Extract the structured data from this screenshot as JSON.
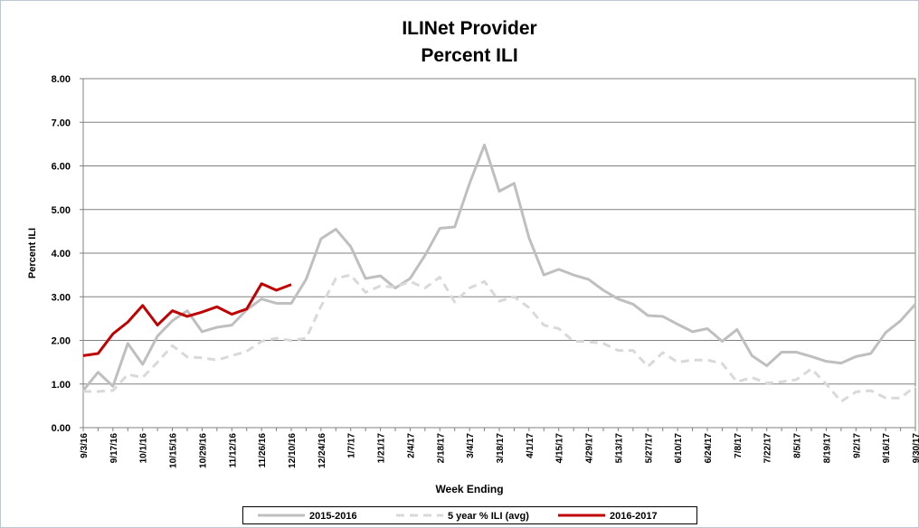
{
  "chart_data": {
    "type": "line",
    "title": "ILINet Provider",
    "subtitle": "Percent ILI",
    "x_label": "Week Ending",
    "y_label": "Percent ILI",
    "categories": [
      "9/3/16",
      null,
      "9/17/16",
      null,
      "10/1/16",
      null,
      "10/15/16",
      null,
      "10/29/16",
      null,
      "11/12/16",
      null,
      "11/26/16",
      null,
      "12/10/16",
      null,
      "12/24/16",
      null,
      "1/7/17",
      null,
      "1/21/17",
      null,
      "2/4/17",
      null,
      "2/18/17",
      null,
      "3/4/17",
      null,
      "3/18/17",
      null,
      "4/1/17",
      null,
      "4/15/17",
      null,
      "4/29/17",
      null,
      "5/13/17",
      null,
      "5/27/17",
      null,
      "6/10/17",
      null,
      "6/24/17",
      null,
      "7/8/17",
      null,
      "7/22/17",
      null,
      "8/5/17",
      null,
      "8/19/17",
      null,
      "9/2/17",
      null,
      "9/16/17",
      null,
      "9/30/17"
    ],
    "series": [
      {
        "name": "2015-2016",
        "color": "#bfbfbf",
        "dashed": false,
        "values": [
          0.85,
          1.27,
          0.95,
          1.93,
          1.45,
          2.1,
          2.45,
          2.68,
          2.2,
          2.3,
          2.35,
          2.7,
          2.95,
          2.85,
          2.85,
          3.4,
          4.33,
          4.55,
          4.15,
          3.42,
          3.48,
          3.2,
          3.42,
          3.95,
          4.57,
          4.6,
          5.6,
          6.48,
          5.42,
          5.6,
          4.35,
          3.5,
          3.63,
          3.5,
          3.4,
          3.15,
          2.95,
          2.83,
          2.57,
          2.55,
          2.37,
          2.2,
          2.27,
          1.98,
          2.25,
          1.65,
          1.42,
          1.73,
          1.73,
          1.63,
          1.52,
          1.48,
          1.63,
          1.7,
          2.18,
          2.45,
          2.83
        ]
      },
      {
        "name": "5 year % ILI (avg)",
        "color": "#d9d9d9",
        "dashed": true,
        "values": [
          0.83,
          0.83,
          0.85,
          1.22,
          1.15,
          1.5,
          1.88,
          1.62,
          1.6,
          1.55,
          1.65,
          1.75,
          1.98,
          2.05,
          2.0,
          2.05,
          2.78,
          3.42,
          3.5,
          3.1,
          3.25,
          3.22,
          3.35,
          3.2,
          3.45,
          2.88,
          3.2,
          3.35,
          2.9,
          3.0,
          2.75,
          2.35,
          2.27,
          1.98,
          1.97,
          1.93,
          1.77,
          1.77,
          1.4,
          1.72,
          1.5,
          1.55,
          1.55,
          1.47,
          1.05,
          1.15,
          1.02,
          1.05,
          1.1,
          1.35,
          1.0,
          0.6,
          0.82,
          0.85,
          0.68,
          0.68,
          0.95
        ]
      },
      {
        "name": "2016-2017",
        "color": "#c00000",
        "dashed": false,
        "values": [
          1.65,
          1.7,
          2.15,
          2.42,
          2.8,
          2.35,
          2.68,
          2.55,
          2.65,
          2.77,
          2.6,
          2.72,
          3.3,
          3.15,
          3.28,
          null,
          null,
          null,
          null,
          null,
          null,
          null,
          null,
          null,
          null,
          null,
          null,
          null,
          null,
          null,
          null,
          null,
          null,
          null,
          null,
          null,
          null,
          null,
          null,
          null,
          null,
          null,
          null,
          null,
          null,
          null,
          null,
          null,
          null,
          null,
          null,
          null,
          null,
          null,
          null,
          null,
          null
        ]
      }
    ],
    "ylim": [
      0,
      8
    ],
    "yticks": [
      {
        "value": 0,
        "label": "0.00"
      },
      {
        "value": 1,
        "label": "1.00"
      },
      {
        "value": 2,
        "label": "2.00"
      },
      {
        "value": 3,
        "label": "3.00"
      },
      {
        "value": 4,
        "label": "4.00"
      },
      {
        "value": 5,
        "label": "5.00"
      },
      {
        "value": 6,
        "label": "6.00"
      },
      {
        "value": 7,
        "label": "7.00"
      },
      {
        "value": 8,
        "label": "8.00"
      }
    ],
    "grid": true,
    "legend": "bottom"
  }
}
